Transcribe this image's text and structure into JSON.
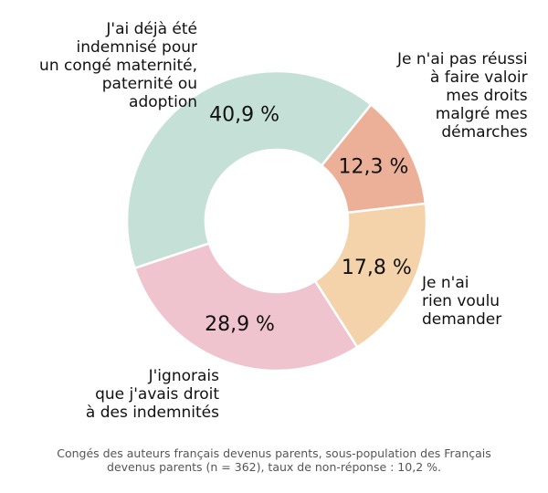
{
  "chart_data": {
    "type": "pie",
    "donut": true,
    "slices": [
      {
        "label": "Je n'ai pas réussi\nà faire valoir\nmes droits\nmalgré mes\ndémarches",
        "value": 12.3,
        "value_label": "12,3 %",
        "color": "#ebb097"
      },
      {
        "label": "Je n'ai\nrien voulu\ndemander",
        "value": 17.8,
        "value_label": "17,8 %",
        "color": "#f5d3aa"
      },
      {
        "label": "J'ignorais\nque j'avais droit\nà des indemnités",
        "value": 28.9,
        "value_label": "28,9 %",
        "color": "#f0c4cf"
      },
      {
        "label": "J'ai déjà été\nindemnisé pour\nun congé maternité,\npaternité ou\nadoption",
        "value": 40.9,
        "value_label": "40,9 %",
        "color": "#c5e0d6"
      }
    ],
    "caption": "Congés des auteurs français devenus parents, sous-population des Français\ndevenus parents (n = 362), taux de non-réponse : 10,2 %."
  }
}
